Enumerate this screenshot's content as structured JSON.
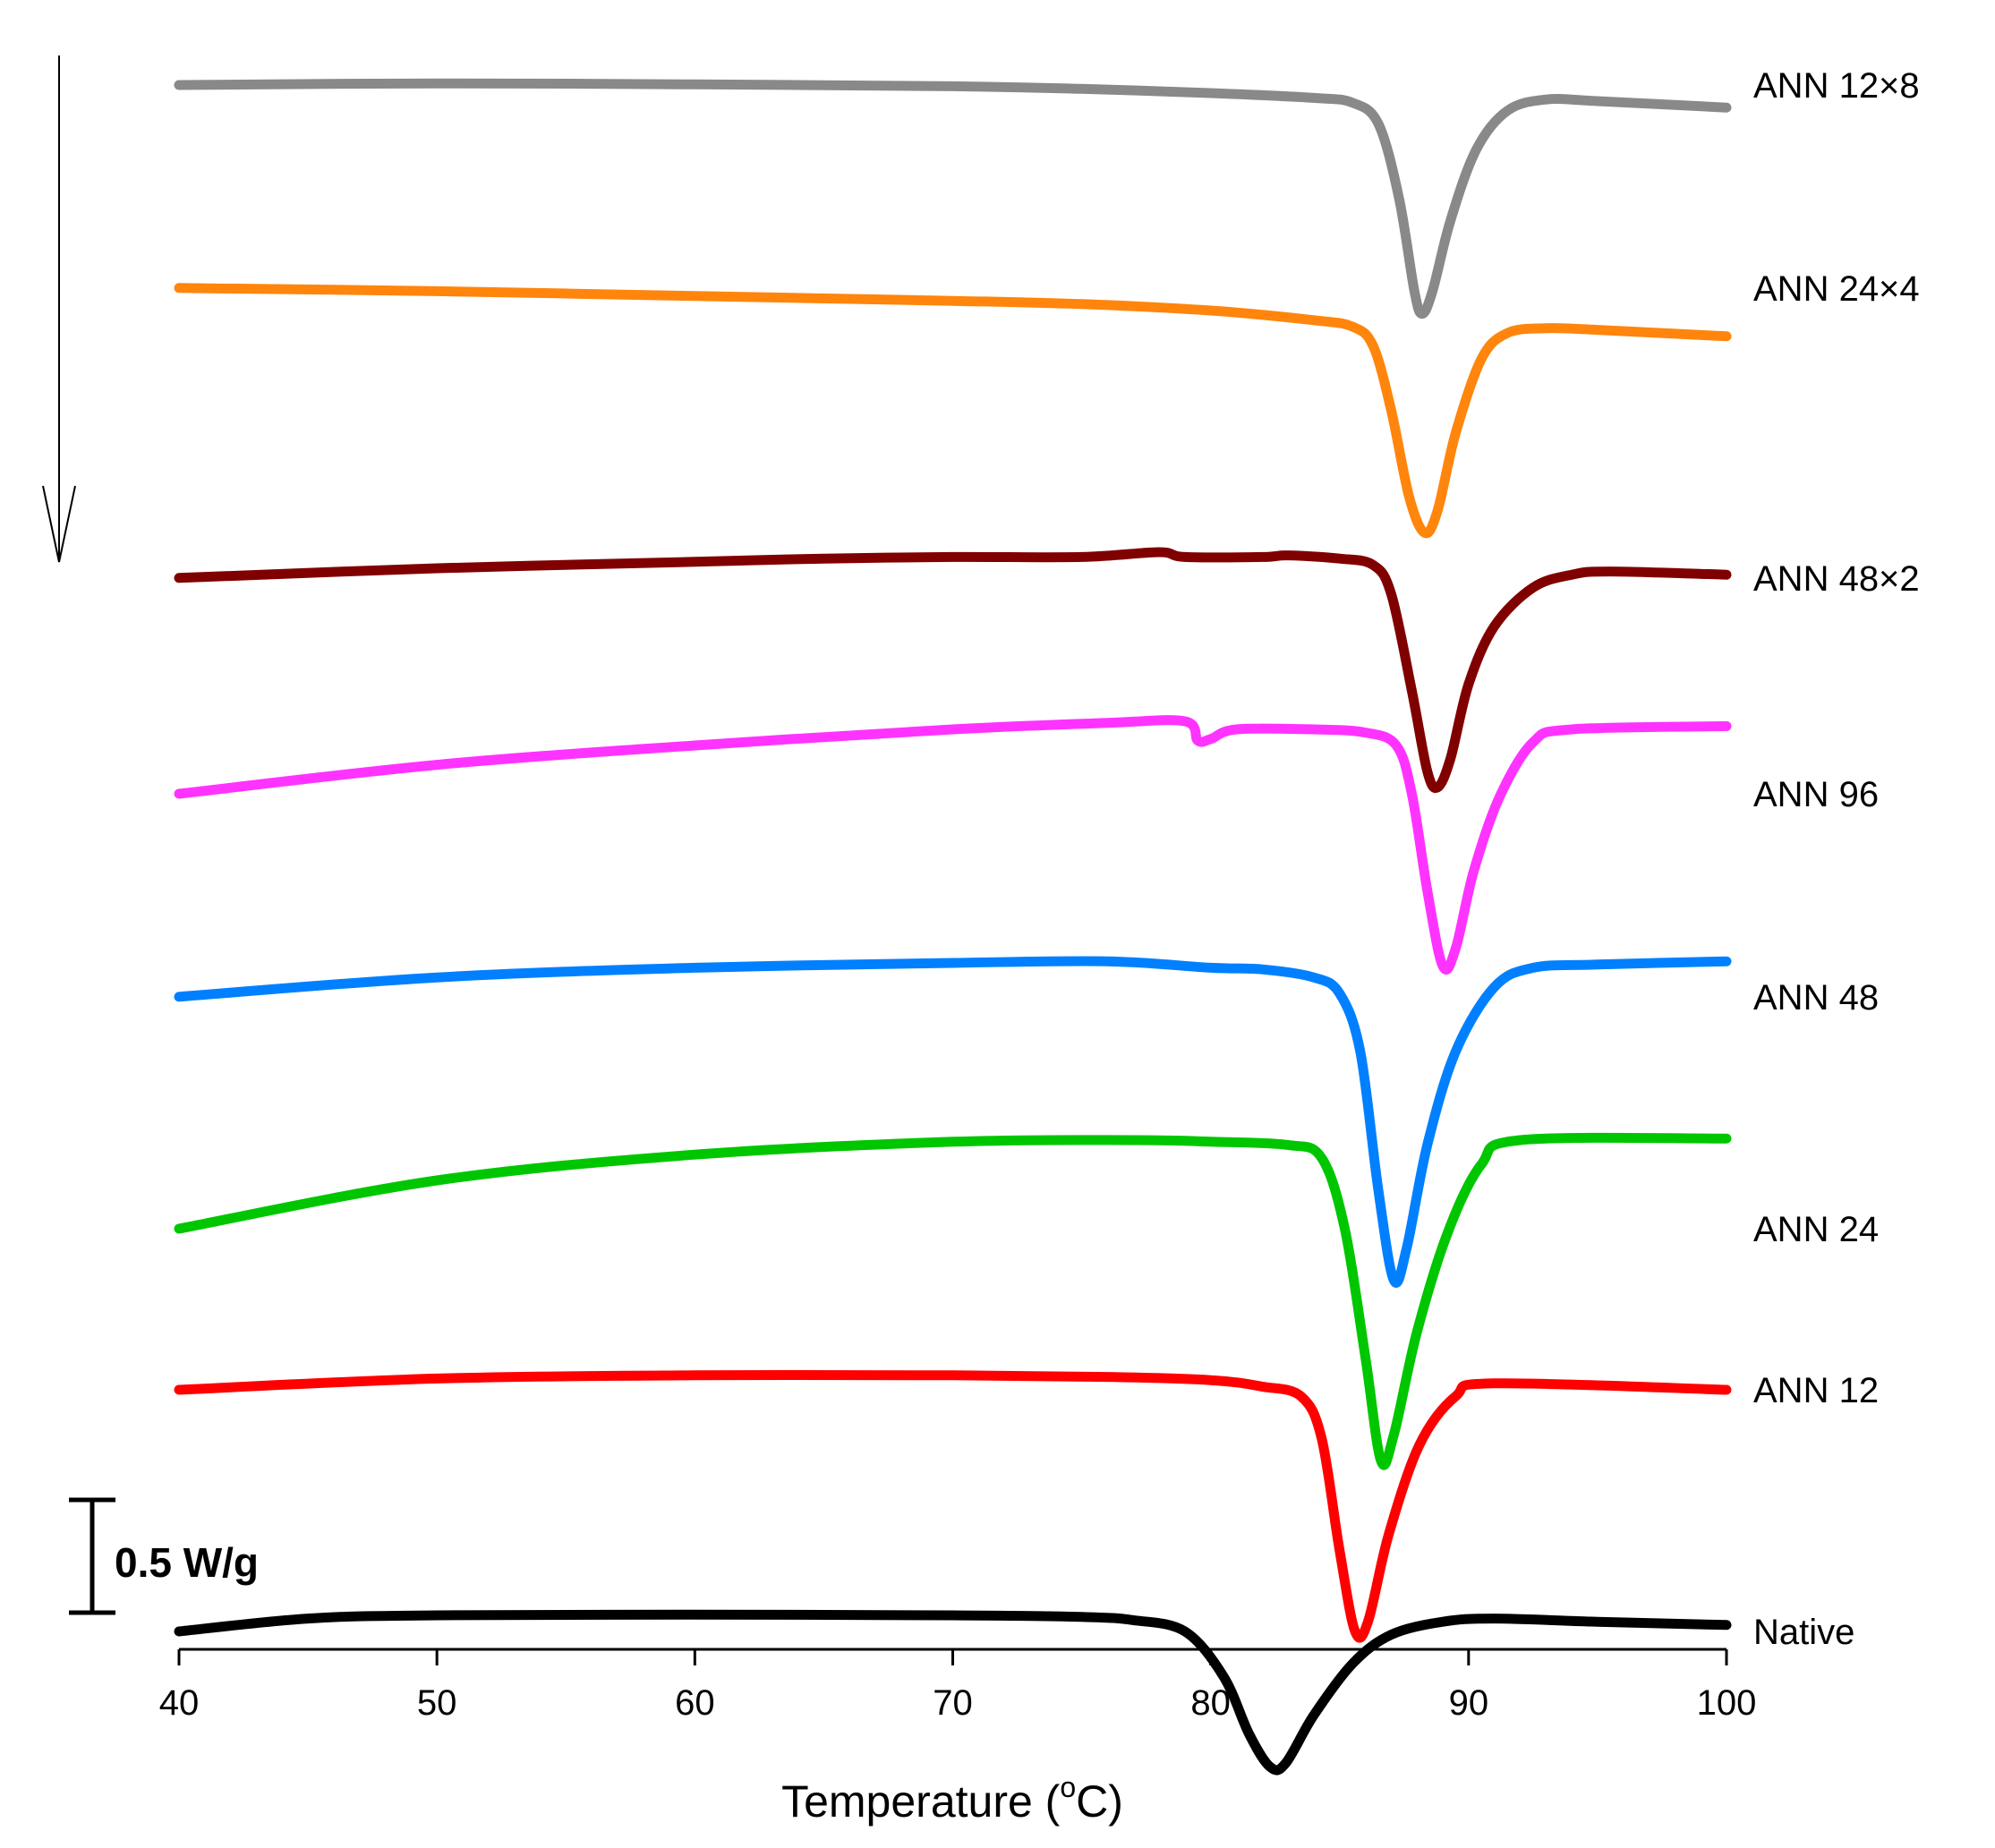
{
  "chart_data": {
    "type": "line",
    "title": "",
    "xlabel": {
      "main": "Temperature (",
      "sup": "o",
      "unit": "C)"
    },
    "ylabel": "",
    "xlim": [
      40,
      100
    ],
    "x_ticks": [
      40,
      50,
      60,
      70,
      80,
      90,
      100
    ],
    "grid": false,
    "legend": "inline labels at right end of each curve",
    "scale_bar": {
      "label": "0.5 W/g",
      "value": 0.5,
      "units": "W/g"
    },
    "direction_arrow": "endo down",
    "series": [
      {
        "name": "ANN 12×8",
        "color": "#898989",
        "offset": 0.0,
        "points": [
          [
            40,
            0.0
          ],
          [
            50,
            0.005
          ],
          [
            60,
            0.002
          ],
          [
            70,
            -0.004
          ],
          [
            75,
            -0.012
          ],
          [
            80,
            -0.025
          ],
          [
            84,
            -0.04
          ],
          [
            85.5,
            -0.055
          ],
          [
            86.5,
            -0.12
          ],
          [
            87.3,
            -0.35
          ],
          [
            87.9,
            -0.64
          ],
          [
            88.2,
            -0.71
          ],
          [
            88.6,
            -0.64
          ],
          [
            89.3,
            -0.42
          ],
          [
            90.3,
            -0.2
          ],
          [
            91.5,
            -0.08
          ],
          [
            93,
            -0.045
          ],
          [
            95,
            -0.05
          ],
          [
            100,
            -0.07
          ]
        ]
      },
      {
        "name": "ANN 24×4",
        "color": "#ff850c",
        "offset": -0.63,
        "points": [
          [
            40,
            0.0
          ],
          [
            50,
            -0.01
          ],
          [
            60,
            -0.025
          ],
          [
            70,
            -0.04
          ],
          [
            75,
            -0.05
          ],
          [
            80,
            -0.07
          ],
          [
            84,
            -0.1
          ],
          [
            85.5,
            -0.12
          ],
          [
            86.3,
            -0.18
          ],
          [
            87.0,
            -0.38
          ],
          [
            87.7,
            -0.65
          ],
          [
            88.3,
            -0.76
          ],
          [
            88.8,
            -0.69
          ],
          [
            89.5,
            -0.45
          ],
          [
            90.5,
            -0.22
          ],
          [
            91.5,
            -0.14
          ],
          [
            93,
            -0.125
          ],
          [
            95,
            -0.13
          ],
          [
            100,
            -0.15
          ]
        ]
      },
      {
        "name": "ANN 48×2",
        "color": "#800000",
        "offset": -1.53,
        "points": [
          [
            40,
            0.0
          ],
          [
            50,
            0.03
          ],
          [
            60,
            0.05
          ],
          [
            65,
            0.06
          ],
          [
            70,
            0.065
          ],
          [
            75,
            0.065
          ],
          [
            78,
            0.08
          ],
          [
            79,
            0.065
          ],
          [
            82,
            0.065
          ],
          [
            83,
            0.07
          ],
          [
            85,
            0.06
          ],
          [
            86.3,
            0.04
          ],
          [
            87.0,
            -0.05
          ],
          [
            87.8,
            -0.35
          ],
          [
            88.4,
            -0.6
          ],
          [
            88.8,
            -0.65
          ],
          [
            89.3,
            -0.56
          ],
          [
            90,
            -0.33
          ],
          [
            91,
            -0.15
          ],
          [
            92.5,
            -0.03
          ],
          [
            94,
            0.01
          ],
          [
            95.5,
            0.02
          ],
          [
            100,
            0.01
          ]
        ]
      },
      {
        "name": "ANN 96",
        "color": "#ff33ff",
        "offset": -2.2,
        "points": [
          [
            40,
            0.0
          ],
          [
            50,
            0.09
          ],
          [
            60,
            0.15
          ],
          [
            70,
            0.2
          ],
          [
            76,
            0.22
          ],
          [
            79,
            0.225
          ],
          [
            79.5,
            0.165
          ],
          [
            80,
            0.17
          ],
          [
            81,
            0.2
          ],
          [
            84,
            0.2
          ],
          [
            86,
            0.19
          ],
          [
            87.2,
            0.15
          ],
          [
            87.8,
            0.0
          ],
          [
            88.4,
            -0.3
          ],
          [
            89.0,
            -0.535
          ],
          [
            89.5,
            -0.48
          ],
          [
            90.2,
            -0.24
          ],
          [
            91.2,
            -0.01
          ],
          [
            92.5,
            0.16
          ],
          [
            94,
            0.2
          ],
          [
            100,
            0.21
          ]
        ]
      },
      {
        "name": "ANN 48",
        "color": "#0080ff",
        "offset": -2.83,
        "points": [
          [
            40,
            0.0
          ],
          [
            50,
            0.06
          ],
          [
            60,
            0.09
          ],
          [
            70,
            0.105
          ],
          [
            76,
            0.11
          ],
          [
            80,
            0.09
          ],
          [
            82,
            0.085
          ],
          [
            84,
            0.06
          ],
          [
            85,
            0.01
          ],
          [
            85.8,
            -0.17
          ],
          [
            86.5,
            -0.6
          ],
          [
            87.1,
            -0.88
          ],
          [
            87.6,
            -0.78
          ],
          [
            88.4,
            -0.46
          ],
          [
            89.5,
            -0.17
          ],
          [
            91,
            0.03
          ],
          [
            92.5,
            0.09
          ],
          [
            95,
            0.1
          ],
          [
            100,
            0.11
          ]
        ]
      },
      {
        "name": "ANN 24",
        "color": "#00c600",
        "offset": -3.55,
        "points": [
          [
            40,
            0.0
          ],
          [
            50,
            0.15
          ],
          [
            60,
            0.23
          ],
          [
            70,
            0.27
          ],
          [
            77,
            0.275
          ],
          [
            80,
            0.27
          ],
          [
            83,
            0.26
          ],
          [
            84.3,
            0.22
          ],
          [
            85.2,
            0.0
          ],
          [
            86.0,
            -0.4
          ],
          [
            86.6,
            -0.72
          ],
          [
            87.1,
            -0.64
          ],
          [
            88.0,
            -0.32
          ],
          [
            89.2,
            -0.01
          ],
          [
            90.5,
            0.2
          ],
          [
            92,
            0.275
          ],
          [
            100,
            0.28
          ]
        ]
      },
      {
        "name": "ANN 12",
        "color": "#ff0000",
        "offset": -4.05,
        "points": [
          [
            40,
            0.0
          ],
          [
            50,
            0.035
          ],
          [
            60,
            0.045
          ],
          [
            70,
            0.045
          ],
          [
            76,
            0.04
          ],
          [
            80,
            0.03
          ],
          [
            82,
            0.01
          ],
          [
            83.5,
            -0.02
          ],
          [
            84.3,
            -0.15
          ],
          [
            85.0,
            -0.5
          ],
          [
            85.6,
            -0.75
          ],
          [
            86.1,
            -0.72
          ],
          [
            86.9,
            -0.45
          ],
          [
            88.1,
            -0.17
          ],
          [
            89.5,
            -0.02
          ],
          [
            91,
            0.02
          ],
          [
            100,
            0.0
          ]
        ]
      },
      {
        "name": "Native",
        "color": "#000000",
        "offset": -4.8,
        "points": [
          [
            40,
            0.0
          ],
          [
            45,
            0.04
          ],
          [
            50,
            0.05
          ],
          [
            60,
            0.052
          ],
          [
            70,
            0.05
          ],
          [
            75,
            0.045
          ],
          [
            77,
            0.035
          ],
          [
            79,
            0.0
          ],
          [
            80.5,
            -0.14
          ],
          [
            81.5,
            -0.32
          ],
          [
            82.3,
            -0.42
          ],
          [
            82.9,
            -0.41
          ],
          [
            84,
            -0.26
          ],
          [
            85.5,
            -0.1
          ],
          [
            87,
            -0.01
          ],
          [
            89,
            0.03
          ],
          [
            91,
            0.04
          ],
          [
            95,
            0.03
          ],
          [
            100,
            0.02
          ]
        ]
      }
    ]
  }
}
